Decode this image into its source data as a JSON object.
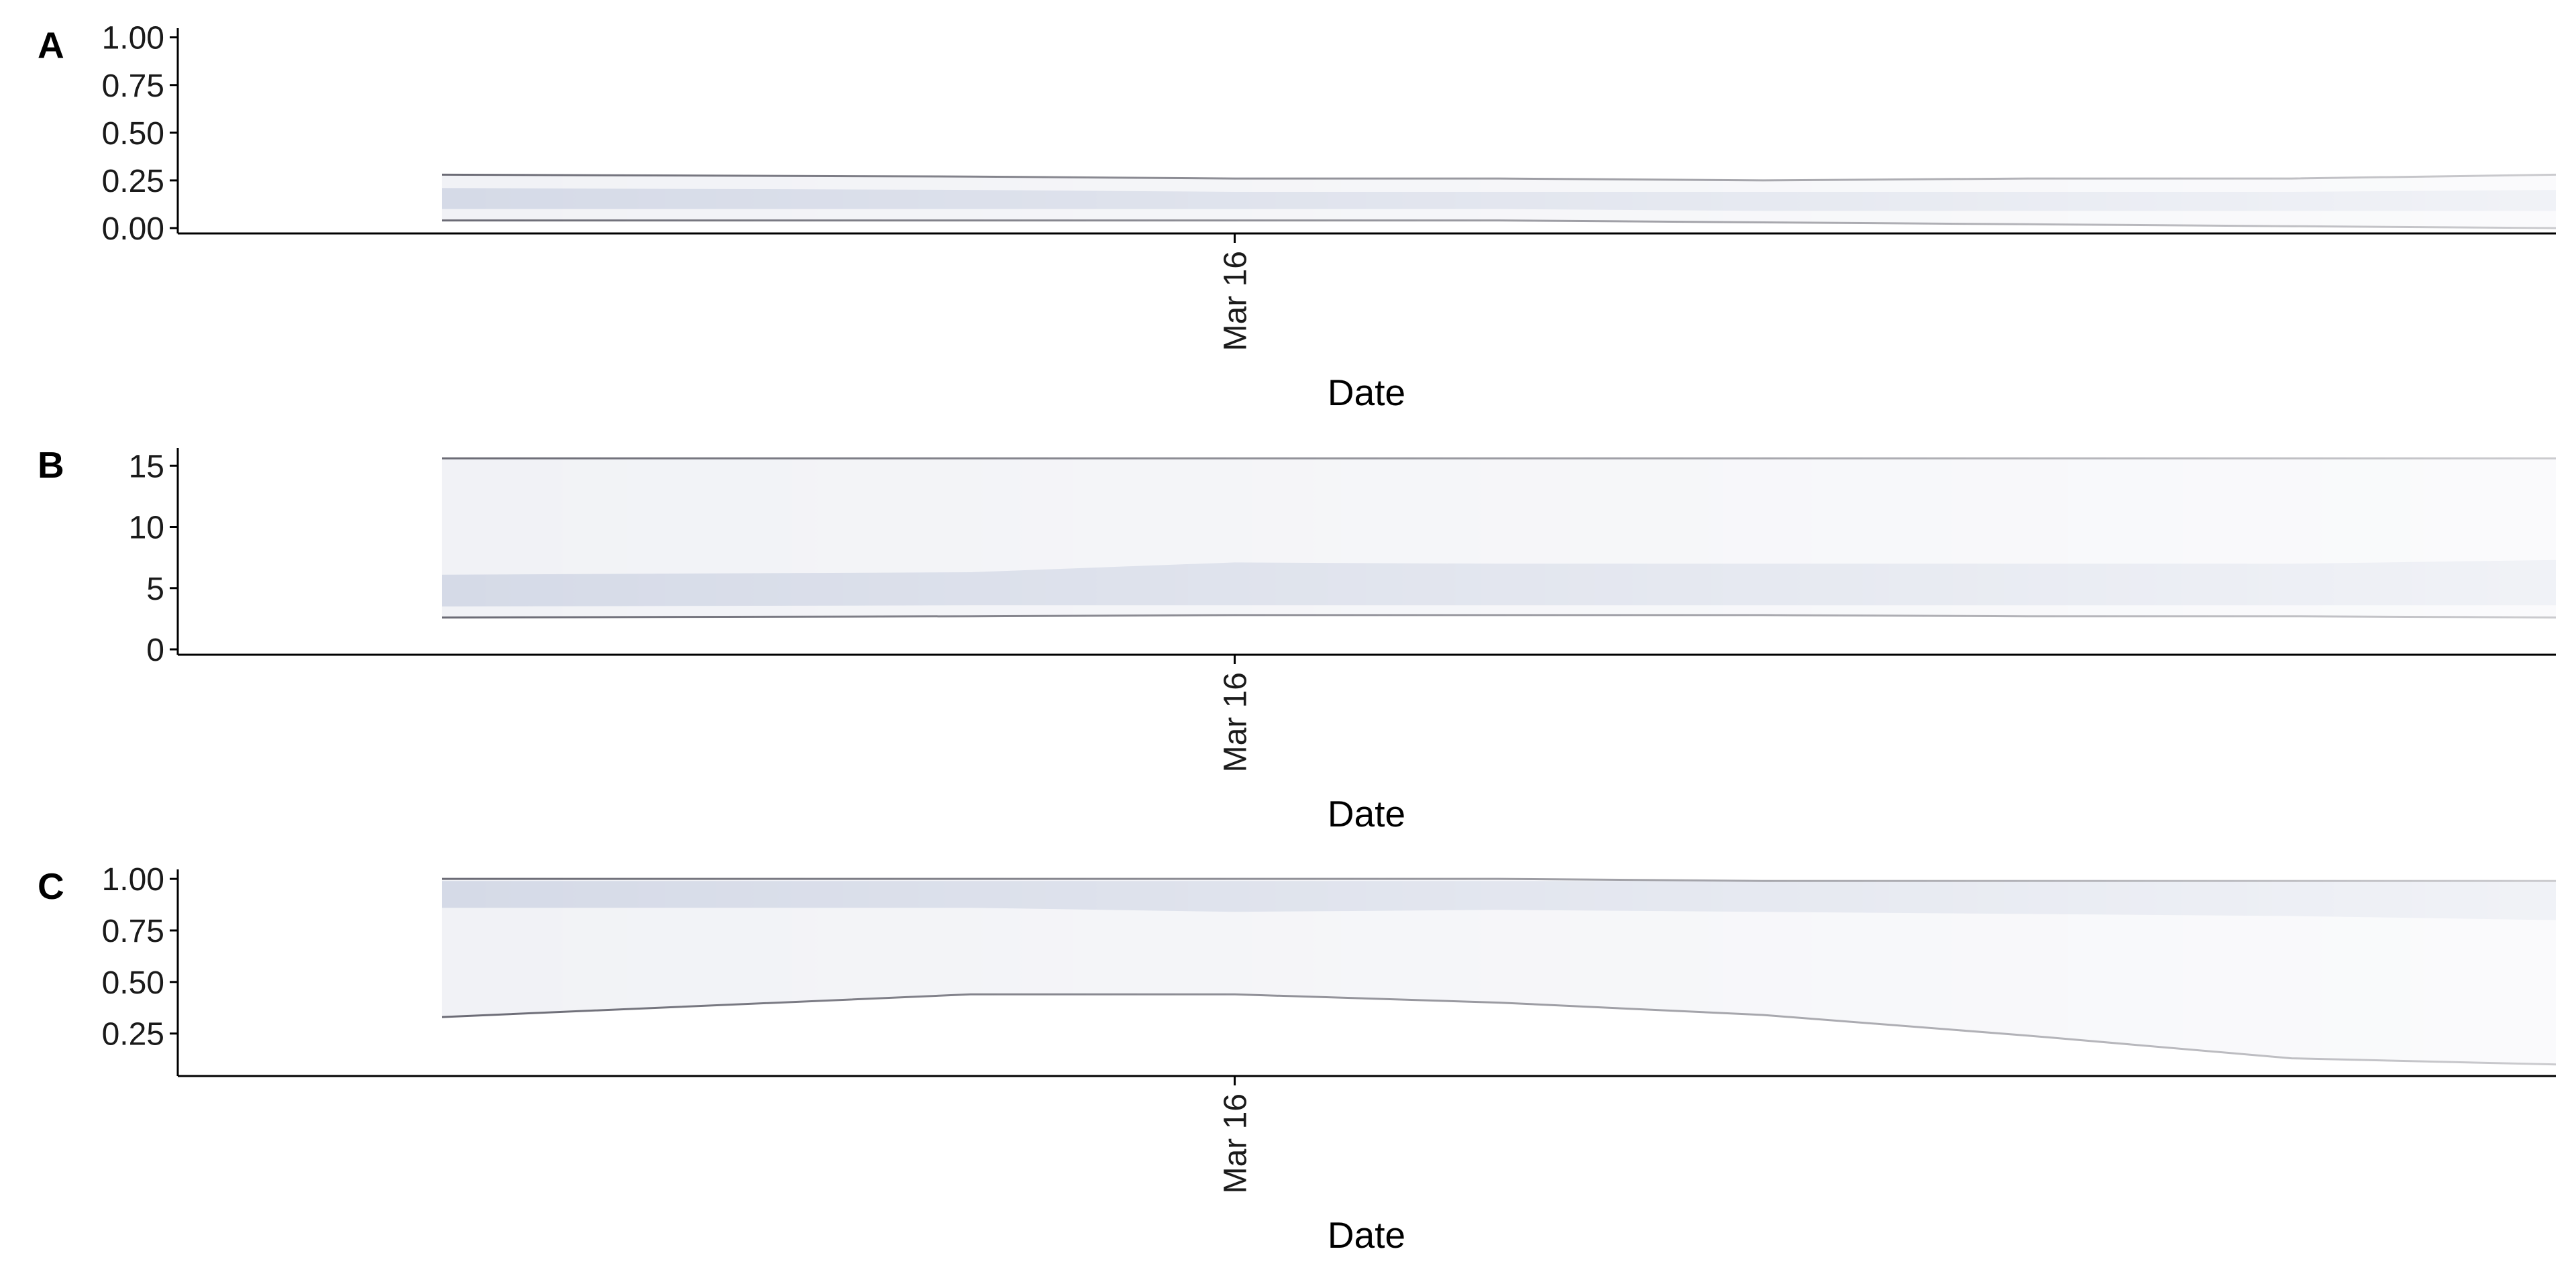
{
  "chart_data": [
    {
      "panel": "A",
      "type": "area",
      "xlabel": "Date",
      "ylabel": "",
      "x": [
        "2020-03-13",
        "2020-03-15",
        "2020-03-16",
        "2020-03-17",
        "2020-03-18",
        "2020-03-19",
        "2020-03-20",
        "2020-03-21"
      ],
      "x_ticks": [
        {
          "date": "2020-03-16",
          "label": "Mar 16"
        }
      ],
      "xlim": [
        "2020-03-12",
        "2020-03-21"
      ],
      "ylim": [
        0,
        1.02
      ],
      "y_ticks": [
        0,
        0.25,
        0.5,
        0.75,
        1
      ],
      "y_tick_labels": [
        "0.00",
        "0.25",
        "0.50",
        "0.75",
        "1.00"
      ],
      "bands": [
        {
          "level": "outer",
          "lower": [
            0.04,
            0.04,
            0.04,
            0.04,
            0.03,
            0.02,
            0.01,
            0.0
          ],
          "upper": [
            0.28,
            0.27,
            0.26,
            0.26,
            0.25,
            0.26,
            0.26,
            0.28
          ]
        },
        {
          "level": "inner",
          "lower": [
            0.1,
            0.1,
            0.1,
            0.1,
            0.09,
            0.09,
            0.09,
            0.09
          ],
          "upper": [
            0.21,
            0.2,
            0.19,
            0.19,
            0.19,
            0.19,
            0.19,
            0.2
          ]
        }
      ],
      "grid": false
    },
    {
      "panel": "B",
      "type": "area",
      "xlabel": "Date",
      "ylabel": "",
      "x": [
        "2020-03-13",
        "2020-03-15",
        "2020-03-16",
        "2020-03-17",
        "2020-03-18",
        "2020-03-19",
        "2020-03-20",
        "2020-03-21"
      ],
      "x_ticks": [
        {
          "date": "2020-03-16",
          "label": "Mar 16"
        }
      ],
      "xlim": [
        "2020-03-12",
        "2020-03-21"
      ],
      "ylim": [
        0,
        16
      ],
      "y_ticks": [
        0,
        5,
        10,
        15
      ],
      "y_tick_labels": [
        "0",
        "5",
        "10",
        "15"
      ],
      "bands": [
        {
          "level": "outer",
          "lower": [
            2.6,
            2.7,
            2.8,
            2.8,
            2.8,
            2.7,
            2.7,
            2.6
          ],
          "upper": [
            15.6,
            15.6,
            15.6,
            15.6,
            15.6,
            15.6,
            15.6,
            15.6
          ]
        },
        {
          "level": "inner",
          "lower": [
            3.5,
            3.6,
            3.6,
            3.6,
            3.6,
            3.6,
            3.6,
            3.6
          ],
          "upper": [
            6.1,
            6.3,
            7.1,
            7.0,
            7.0,
            7.0,
            7.0,
            7.3
          ]
        }
      ],
      "grid": false
    },
    {
      "panel": "C",
      "type": "area",
      "xlabel": "Date",
      "ylabel": "",
      "x": [
        "2020-03-13",
        "2020-03-15",
        "2020-03-16",
        "2020-03-17",
        "2020-03-18",
        "2020-03-19",
        "2020-03-20",
        "2020-03-21"
      ],
      "x_ticks": [
        {
          "date": "2020-03-16",
          "label": "Mar 16"
        }
      ],
      "xlim": [
        "2020-03-12",
        "2020-03-21"
      ],
      "ylim": [
        0.07,
        1.02
      ],
      "y_ticks": [
        0.25,
        0.5,
        0.75,
        1
      ],
      "y_tick_labels": [
        "0.25",
        "0.50",
        "0.75",
        "1.00"
      ],
      "bands": [
        {
          "level": "outer",
          "lower": [
            0.33,
            0.44,
            0.44,
            0.4,
            0.34,
            0.24,
            0.13,
            0.1
          ],
          "upper": [
            1.0,
            1.0,
            1.0,
            1.0,
            0.99,
            0.99,
            0.99,
            0.99
          ]
        },
        {
          "level": "inner",
          "lower": [
            0.86,
            0.86,
            0.84,
            0.85,
            0.84,
            0.83,
            0.82,
            0.8
          ],
          "upper": [
            0.99,
            0.99,
            0.99,
            0.99,
            0.99,
            0.99,
            0.99,
            0.99
          ]
        }
      ],
      "grid": false
    }
  ],
  "colors": {
    "outer_band": "#f1f2f6",
    "inner_band": "#d5dae7",
    "edge_line": "#6b6b75",
    "axis": "#000000",
    "text": "#1a1a1a"
  },
  "fade": {
    "start_opacity": 1.0,
    "end_opacity": 0.35
  }
}
